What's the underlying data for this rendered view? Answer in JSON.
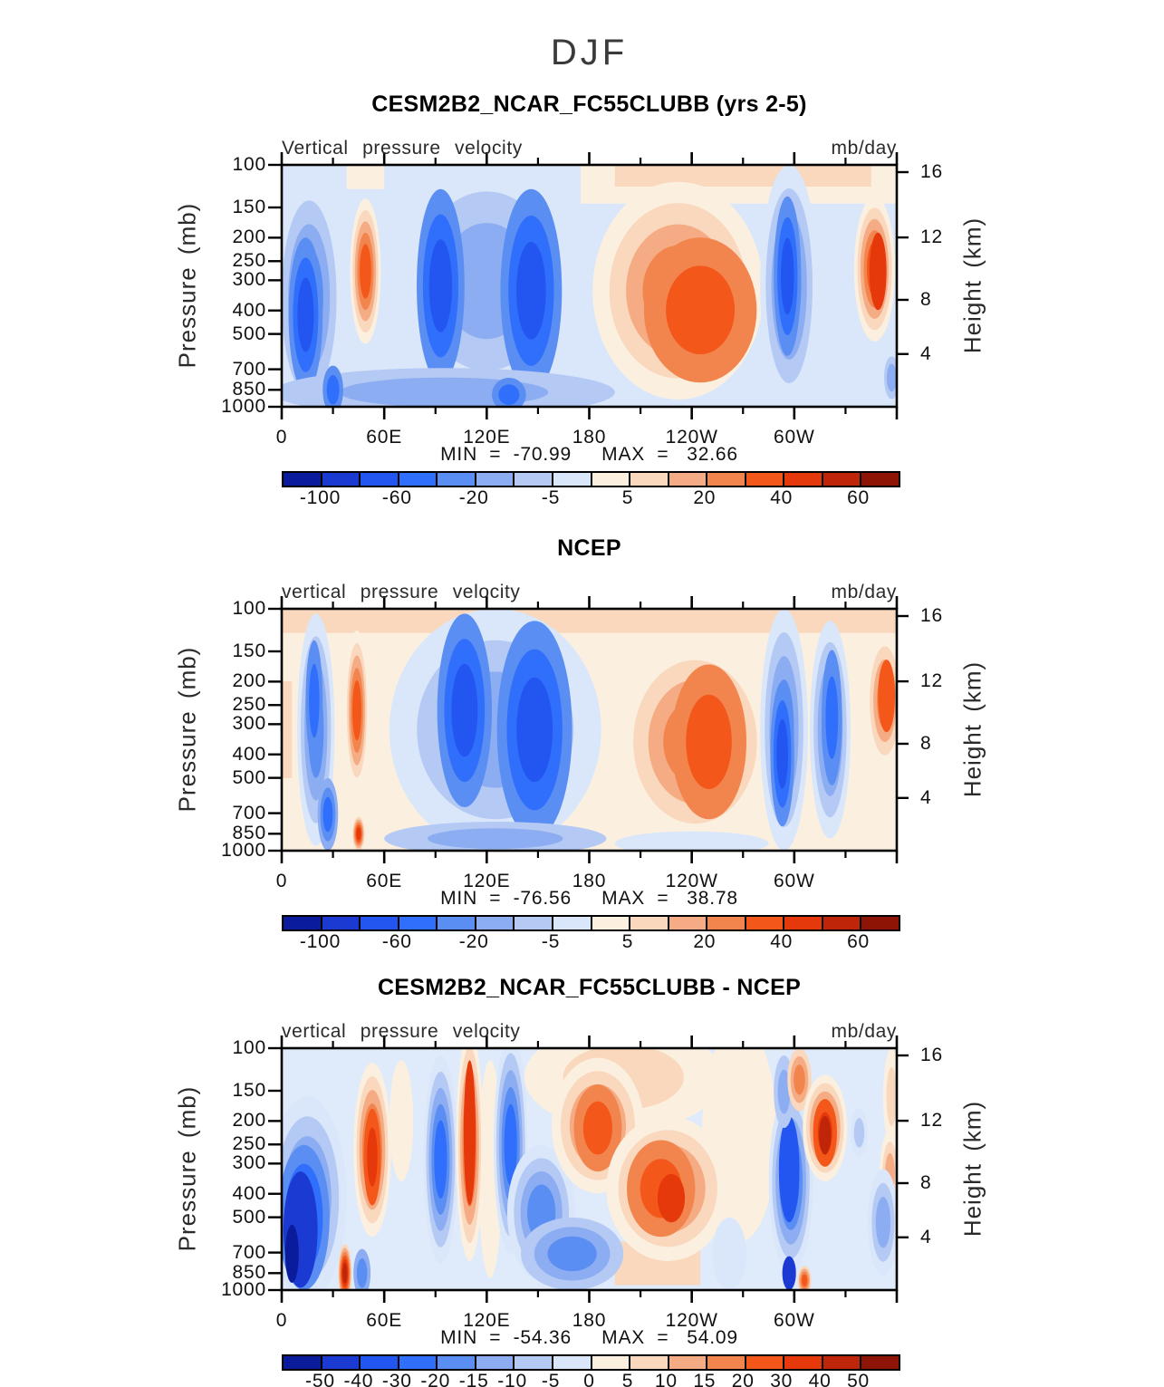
{
  "figure": {
    "title": "DJF"
  },
  "axes": {
    "pressure_label": "Pressure (mb)",
    "height_label": "Height (km)",
    "pressure_ticks": [
      "100",
      "150",
      "200",
      "250",
      "300",
      "400",
      "500",
      "700",
      "850",
      "1000"
    ],
    "pressure_fracs": [
      0,
      0.176,
      0.301,
      0.398,
      0.477,
      0.602,
      0.699,
      0.845,
      0.93,
      1.0
    ],
    "height_ticks": [
      "16",
      "12",
      "8",
      "4"
    ],
    "height_fracs": [
      0.03,
      0.3,
      0.558,
      0.782
    ],
    "lon_labels": [
      "0",
      "60E",
      "120E",
      "180",
      "120W",
      "60W"
    ],
    "lon_degs": [
      0,
      60,
      120,
      180,
      240,
      300
    ],
    "lon_major_degs": [
      0,
      60,
      120,
      180,
      240,
      300,
      360
    ],
    "lon_minor_degs": [
      30,
      90,
      150,
      210,
      270,
      330
    ]
  },
  "palette": [
    "#0a1b9c",
    "#1a3ad2",
    "#2356f0",
    "#2f6ffb",
    "#5b8ef2",
    "#8cadf2",
    "#b4c9f4",
    "#dae7fa",
    "#fbf0e0",
    "#f9d8bd",
    "#f5ab84",
    "#f2854e",
    "#f4571a",
    "#e6390b",
    "#bf2508",
    "#8e1405"
  ],
  "panels": [
    {
      "title": "CESM2B2_NCAR_FC55CLUBB (yrs 2-5)",
      "subtitle": "Vertical pressure velocity",
      "units": "mb/day",
      "minmax": "MIN  =  -70.99     MAX  =   32.66",
      "colorbar": {
        "labels": [
          "-100",
          "-60",
          "-20",
          "-5",
          "5",
          "20",
          "40",
          "60"
        ],
        "positions": [
          1,
          3,
          5,
          7,
          9,
          11,
          13,
          15
        ]
      },
      "field": {
        "base": "#dae7fa",
        "bands": [
          [
            175,
            362,
            0,
            0.16,
            8
          ],
          [
            195,
            345,
            0,
            0.09,
            9
          ],
          [
            38,
            60,
            0,
            0.1,
            8
          ]
        ],
        "blobs": [
          [
            -1,
            16,
            0.55,
            20,
            0.5,
            4,
            0
          ],
          [
            -1,
            14,
            0.62,
            10,
            0.32,
            3,
            3
          ],
          [
            1,
            49,
            0.44,
            9,
            0.3,
            5,
            0
          ],
          [
            -1,
            120,
            0.48,
            55,
            0.5,
            3,
            0
          ],
          [
            -1,
            93,
            0.5,
            14,
            0.4,
            3,
            3
          ],
          [
            -1,
            146,
            0.52,
            18,
            0.42,
            3,
            3
          ],
          [
            1,
            232,
            0.52,
            50,
            0.45,
            4,
            0
          ],
          [
            1,
            245,
            0.6,
            33,
            0.3,
            2,
            3
          ],
          [
            -1,
            297,
            0.5,
            17,
            0.5,
            4,
            0
          ],
          [
            -1,
            296,
            0.46,
            8,
            0.33,
            3,
            3
          ],
          [
            1,
            347,
            0.43,
            12,
            0.3,
            5,
            0
          ],
          [
            1,
            349,
            0.44,
            5,
            0.16,
            1,
            5
          ],
          [
            -1,
            95,
            0.94,
            100,
            0.1,
            2,
            1
          ],
          [
            -1,
            133,
            0.95,
            10,
            0.07,
            2,
            3
          ],
          [
            -1,
            30,
            0.93,
            6,
            0.1,
            2,
            3
          ],
          [
            -1,
            262,
            0.97,
            12,
            0.05,
            1,
            0
          ],
          [
            -1,
            357,
            0.88,
            6,
            0.12,
            3,
            0
          ]
        ]
      }
    },
    {
      "title": "NCEP",
      "subtitle": "vertical pressure velocity",
      "units": "mb/day",
      "minmax": "MIN  =  -76.56     MAX  =   38.78",
      "colorbar": {
        "labels": [
          "-100",
          "-60",
          "-20",
          "-5",
          "5",
          "20",
          "40",
          "60"
        ],
        "positions": [
          1,
          3,
          5,
          7,
          9,
          11,
          13,
          15
        ]
      },
      "field": {
        "base": "#fbf0e0",
        "bands": [
          [
            0,
            362,
            0,
            0.1,
            9
          ],
          [
            0,
            6,
            0.3,
            0.7,
            9
          ]
        ],
        "blobs": [
          [
            -1,
            125,
            0.5,
            62,
            0.5,
            3,
            0
          ],
          [
            -1,
            107,
            0.42,
            16,
            0.4,
            3,
            3
          ],
          [
            -1,
            148,
            0.5,
            22,
            0.45,
            3,
            3
          ],
          [
            -1,
            20,
            0.5,
            11,
            0.48,
            4,
            0
          ],
          [
            -1,
            19,
            0.38,
            5,
            0.25,
            2,
            3
          ],
          [
            -1,
            27,
            0.85,
            6,
            0.15,
            3,
            2
          ],
          [
            1,
            44,
            0.42,
            7,
            0.33,
            5,
            0
          ],
          [
            1,
            45,
            0.93,
            3.5,
            0.07,
            5,
            1
          ],
          [
            1,
            242,
            0.55,
            45,
            0.42,
            4,
            0
          ],
          [
            1,
            250,
            0.55,
            22,
            0.32,
            2,
            3
          ],
          [
            -1,
            294,
            0.5,
            14,
            0.5,
            4,
            0
          ],
          [
            -1,
            293,
            0.6,
            7,
            0.3,
            3,
            3
          ],
          [
            -1,
            321,
            0.5,
            12,
            0.45,
            4,
            0
          ],
          [
            -1,
            322,
            0.45,
            6,
            0.28,
            2,
            3
          ],
          [
            1,
            353,
            0.38,
            11,
            0.28,
            4,
            0
          ],
          [
            1,
            354,
            0.36,
            5,
            0.15,
            1,
            4
          ],
          [
            -1,
            125,
            0.95,
            65,
            0.07,
            2,
            1
          ],
          [
            -1,
            240,
            0.97,
            45,
            0.05,
            1,
            0
          ]
        ]
      }
    },
    {
      "title": "CESM2B2_NCAR_FC55CLUBB - NCEP",
      "subtitle": "vertical pressure velocity",
      "units": "mb/day",
      "minmax": "MIN  =  -54.36     MAX  =   54.09",
      "colorbar": {
        "labels": [
          "-50",
          "-40",
          "-30",
          "-20",
          "-15",
          "-10",
          "-5",
          "0",
          "5",
          "10",
          "15",
          "20",
          "30",
          "40",
          "50"
        ],
        "positions": [
          1,
          2,
          3,
          4,
          5,
          6,
          7,
          8,
          9,
          10,
          11,
          12,
          13,
          14,
          15
        ]
      },
      "field": {
        "base": "#dfeafb",
        "bands": [
          [
            195,
            245,
            0.8,
            0.98,
            9
          ]
        ],
        "blobs": [
          [
            1,
            200,
            0.12,
            58,
            0.22,
            2,
            0
          ],
          [
            1,
            268,
            0.35,
            22,
            0.45,
            1,
            0
          ],
          [
            1,
            70,
            0.3,
            7,
            0.25,
            1,
            0
          ],
          [
            1,
            122,
            0.5,
            7,
            0.45,
            1,
            0
          ],
          [
            -1,
            15,
            0.62,
            23,
            0.42,
            4,
            0
          ],
          [
            -1,
            13,
            0.7,
            15,
            0.3,
            3,
            3
          ],
          [
            -1,
            11,
            0.75,
            10,
            0.24,
            1,
            6
          ],
          [
            -1,
            6,
            0.85,
            4,
            0.12,
            1,
            7
          ],
          [
            1,
            53,
            0.42,
            11,
            0.36,
            5,
            0
          ],
          [
            1,
            53,
            0.45,
            5,
            0.2,
            2,
            4
          ],
          [
            1,
            37,
            0.93,
            4,
            0.12,
            6,
            1
          ],
          [
            -1,
            47,
            0.93,
            5,
            0.1,
            2,
            2
          ],
          [
            -1,
            93,
            0.46,
            10,
            0.43,
            5,
            0
          ],
          [
            1,
            110,
            0.4,
            8,
            0.48,
            5,
            0
          ],
          [
            1,
            110,
            0.35,
            3.5,
            0.3,
            1,
            5
          ],
          [
            -1,
            134,
            0.4,
            10,
            0.45,
            5,
            0
          ],
          [
            -1,
            152,
            0.68,
            20,
            0.28,
            4,
            0
          ],
          [
            -1,
            170,
            0.85,
            30,
            0.15,
            3,
            1
          ],
          [
            1,
            185,
            0.32,
            27,
            0.28,
            4,
            0
          ],
          [
            1,
            185,
            0.33,
            14,
            0.18,
            2,
            3
          ],
          [
            1,
            226,
            0.58,
            36,
            0.3,
            4,
            0
          ],
          [
            1,
            222,
            0.58,
            20,
            0.2,
            2,
            3
          ],
          [
            1,
            228,
            0.62,
            8,
            0.1,
            1,
            5
          ],
          [
            -1,
            262,
            0.85,
            10,
            0.15,
            1,
            0
          ],
          [
            -1,
            298,
            0.55,
            13,
            0.38,
            5,
            0
          ],
          [
            -1,
            297,
            0.5,
            6,
            0.22,
            1,
            5
          ],
          [
            -1,
            297,
            0.93,
            4,
            0.07,
            1,
            6
          ],
          [
            -1,
            294,
            0.18,
            6,
            0.15,
            2,
            1
          ],
          [
            1,
            303,
            0.13,
            7,
            0.13,
            3,
            1
          ],
          [
            1,
            318,
            0.33,
            13,
            0.22,
            5,
            0
          ],
          [
            1,
            318,
            0.35,
            7,
            0.14,
            2,
            4
          ],
          [
            1,
            318,
            0.36,
            3.5,
            0.08,
            1,
            6
          ],
          [
            -1,
            338,
            0.35,
            5,
            0.1,
            2,
            0
          ],
          [
            1,
            357,
            0.2,
            5,
            0.2,
            2,
            0
          ],
          [
            1,
            356,
            0.52,
            6,
            0.18,
            3,
            0
          ],
          [
            -1,
            352,
            0.72,
            9,
            0.22,
            3,
            0
          ],
          [
            1,
            306,
            0.96,
            4,
            0.06,
            4,
            1
          ]
        ]
      }
    }
  ],
  "chart_data": [
    {
      "type": "filled_contour",
      "title": "CESM2B2_NCAR_FC55CLUBB (yrs 2-5)",
      "season": "DJF",
      "variable": "Vertical pressure velocity",
      "units": "mb/day",
      "x_axis": {
        "ticks": [
          "0",
          "60E",
          "120E",
          "180",
          "120W",
          "60W"
        ],
        "range_deg": [
          0,
          360
        ]
      },
      "y_axis_left": {
        "label": "Pressure (mb)",
        "ticks": [
          100,
          150,
          200,
          250,
          300,
          400,
          500,
          700,
          850,
          1000
        ],
        "scale": "log"
      },
      "y_axis_right": {
        "label": "Height (km)",
        "ticks": [
          16,
          12,
          8,
          4
        ]
      },
      "contour_levels": [
        -100,
        -80,
        -60,
        -40,
        -20,
        -10,
        -5,
        0,
        5,
        10,
        20,
        30,
        40,
        50,
        60
      ],
      "min": -70.99,
      "max": 32.66,
      "legend_position": "bottom"
    },
    {
      "type": "filled_contour",
      "title": "NCEP",
      "season": "DJF",
      "variable": "vertical pressure velocity",
      "units": "mb/day",
      "x_axis": {
        "ticks": [
          "0",
          "60E",
          "120E",
          "180",
          "120W",
          "60W"
        ],
        "range_deg": [
          0,
          360
        ]
      },
      "y_axis_left": {
        "label": "Pressure (mb)",
        "ticks": [
          100,
          150,
          200,
          250,
          300,
          400,
          500,
          700,
          850,
          1000
        ],
        "scale": "log"
      },
      "y_axis_right": {
        "label": "Height (km)",
        "ticks": [
          16,
          12,
          8,
          4
        ]
      },
      "contour_levels": [
        -100,
        -80,
        -60,
        -40,
        -20,
        -10,
        -5,
        0,
        5,
        10,
        20,
        30,
        40,
        50,
        60
      ],
      "min": -76.56,
      "max": 38.78,
      "legend_position": "bottom"
    },
    {
      "type": "filled_contour",
      "title": "CESM2B2_NCAR_FC55CLUBB - NCEP",
      "season": "DJF",
      "variable": "vertical pressure velocity",
      "units": "mb/day",
      "x_axis": {
        "ticks": [
          "0",
          "60E",
          "120E",
          "180",
          "120W",
          "60W"
        ],
        "range_deg": [
          0,
          360
        ]
      },
      "y_axis_left": {
        "label": "Pressure (mb)",
        "ticks": [
          100,
          150,
          200,
          250,
          300,
          400,
          500,
          700,
          850,
          1000
        ],
        "scale": "log"
      },
      "y_axis_right": {
        "label": "Height (km)",
        "ticks": [
          16,
          12,
          8,
          4
        ]
      },
      "contour_levels": [
        -50,
        -40,
        -30,
        -20,
        -15,
        -10,
        -5,
        0,
        5,
        10,
        15,
        20,
        30,
        40,
        50
      ],
      "min": -54.36,
      "max": 54.09,
      "legend_position": "bottom"
    }
  ]
}
